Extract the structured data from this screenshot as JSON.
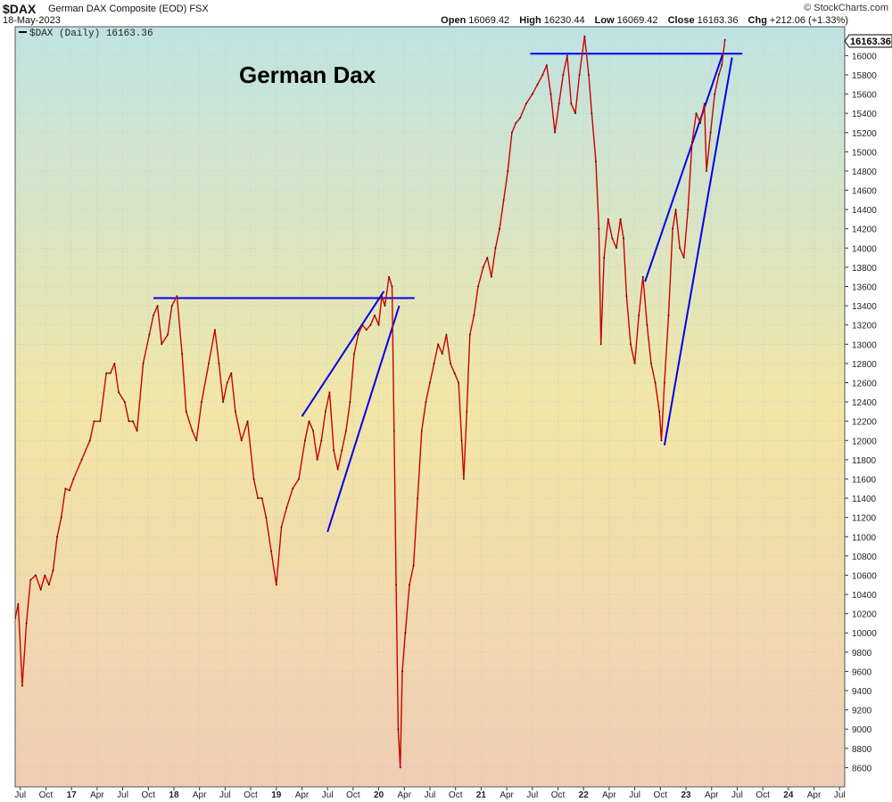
{
  "header": {
    "symbol": "$DAX",
    "name": "German DAX Composite (EOD) FSX",
    "date": "18-May-2023",
    "brand": "© StockCharts.com",
    "open_label": "Open",
    "open": "16069.42",
    "high_label": "High",
    "high": "16230.44",
    "low_label": "Low",
    "low": "16069.42",
    "close_label": "Close",
    "close": "16163.36",
    "chg_label": "Chg",
    "chg": "+212.06 (+1.33%)"
  },
  "chart_data": {
    "type": "line",
    "title": "German Dax",
    "legend": "$DAX (Daily) 16163.36",
    "legend_placement": "top-left",
    "last_value_label": "16163.36",
    "colors": {
      "series": "#cc0000",
      "trendline": "#0000ee",
      "bg_top": "#bfe3e3",
      "bg_mid": "#f2e6a6",
      "bg_bottom": "#f0cdb4"
    },
    "ylim": [
      8400,
      16300
    ],
    "x_range": [
      2016.45,
      2024.55
    ],
    "y_ticks": [
      8600,
      8800,
      9000,
      9200,
      9400,
      9600,
      9800,
      10000,
      10200,
      10400,
      10600,
      10800,
      11000,
      11200,
      11400,
      11600,
      11800,
      12000,
      12200,
      12400,
      12600,
      12800,
      13000,
      13200,
      13400,
      13600,
      13800,
      14000,
      14200,
      14400,
      14600,
      14800,
      15000,
      15200,
      15400,
      15600,
      15800,
      16000
    ],
    "x_ticks": [
      {
        "label": "Jul",
        "x": 2016.5
      },
      {
        "label": "Oct",
        "x": 2016.75
      },
      {
        "label": "17",
        "x": 2017.0
      },
      {
        "label": "Apr",
        "x": 2017.25
      },
      {
        "label": "Jul",
        "x": 2017.5
      },
      {
        "label": "Oct",
        "x": 2017.75
      },
      {
        "label": "18",
        "x": 2018.0
      },
      {
        "label": "Apr",
        "x": 2018.25
      },
      {
        "label": "Jul",
        "x": 2018.5
      },
      {
        "label": "Oct",
        "x": 2018.75
      },
      {
        "label": "19",
        "x": 2019.0
      },
      {
        "label": "Apr",
        "x": 2019.25
      },
      {
        "label": "Jul",
        "x": 2019.5
      },
      {
        "label": "Oct",
        "x": 2019.75
      },
      {
        "label": "20",
        "x": 2020.0
      },
      {
        "label": "Apr",
        "x": 2020.25
      },
      {
        "label": "Jul",
        "x": 2020.5
      },
      {
        "label": "Oct",
        "x": 2020.75
      },
      {
        "label": "21",
        "x": 2021.0
      },
      {
        "label": "Apr",
        "x": 2021.25
      },
      {
        "label": "Jul",
        "x": 2021.5
      },
      {
        "label": "Oct",
        "x": 2021.75
      },
      {
        "label": "22",
        "x": 2022.0
      },
      {
        "label": "Apr",
        "x": 2022.25
      },
      {
        "label": "Jul",
        "x": 2022.5
      },
      {
        "label": "Oct",
        "x": 2022.75
      },
      {
        "label": "23",
        "x": 2023.0
      },
      {
        "label": "Apr",
        "x": 2023.25
      },
      {
        "label": "Jul",
        "x": 2023.5
      },
      {
        "label": "Oct",
        "x": 2023.75
      },
      {
        "label": "24",
        "x": 2024.0
      },
      {
        "label": "Apr",
        "x": 2024.25
      },
      {
        "label": "Jul",
        "x": 2024.5
      }
    ],
    "series": [
      {
        "points": [
          [
            2016.45,
            10150
          ],
          [
            2016.48,
            10300
          ],
          [
            2016.52,
            9450
          ],
          [
            2016.56,
            10100
          ],
          [
            2016.6,
            10550
          ],
          [
            2016.65,
            10600
          ],
          [
            2016.7,
            10450
          ],
          [
            2016.74,
            10600
          ],
          [
            2016.78,
            10500
          ],
          [
            2016.82,
            10650
          ],
          [
            2016.86,
            11000
          ],
          [
            2016.9,
            11200
          ],
          [
            2016.94,
            11500
          ],
          [
            2016.98,
            11480
          ],
          [
            2017.02,
            11600
          ],
          [
            2017.1,
            11800
          ],
          [
            2017.18,
            12000
          ],
          [
            2017.22,
            12200
          ],
          [
            2017.28,
            12200
          ],
          [
            2017.34,
            12700
          ],
          [
            2017.38,
            12700
          ],
          [
            2017.42,
            12800
          ],
          [
            2017.46,
            12500
          ],
          [
            2017.52,
            12400
          ],
          [
            2017.56,
            12200
          ],
          [
            2017.6,
            12200
          ],
          [
            2017.64,
            12100
          ],
          [
            2017.7,
            12800
          ],
          [
            2017.76,
            13100
          ],
          [
            2017.8,
            13300
          ],
          [
            2017.84,
            13400
          ],
          [
            2017.88,
            13000
          ],
          [
            2017.94,
            13100
          ],
          [
            2017.98,
            13400
          ],
          [
            2018.03,
            13500
          ],
          [
            2018.08,
            12900
          ],
          [
            2018.12,
            12300
          ],
          [
            2018.18,
            12100
          ],
          [
            2018.22,
            12000
          ],
          [
            2018.27,
            12400
          ],
          [
            2018.34,
            12800
          ],
          [
            2018.4,
            13150
          ],
          [
            2018.44,
            12800
          ],
          [
            2018.48,
            12400
          ],
          [
            2018.52,
            12600
          ],
          [
            2018.56,
            12700
          ],
          [
            2018.6,
            12300
          ],
          [
            2018.66,
            12000
          ],
          [
            2018.72,
            12200
          ],
          [
            2018.78,
            11600
          ],
          [
            2018.82,
            11400
          ],
          [
            2018.86,
            11400
          ],
          [
            2018.9,
            11200
          ],
          [
            2018.95,
            10850
          ],
          [
            2019.0,
            10500
          ],
          [
            2019.05,
            11100
          ],
          [
            2019.1,
            11300
          ],
          [
            2019.16,
            11500
          ],
          [
            2019.22,
            11600
          ],
          [
            2019.28,
            12000
          ],
          [
            2019.32,
            12200
          ],
          [
            2019.36,
            12100
          ],
          [
            2019.4,
            11800
          ],
          [
            2019.44,
            12000
          ],
          [
            2019.48,
            12300
          ],
          [
            2019.52,
            12500
          ],
          [
            2019.56,
            11900
          ],
          [
            2019.6,
            11700
          ],
          [
            2019.64,
            11900
          ],
          [
            2019.68,
            12100
          ],
          [
            2019.72,
            12400
          ],
          [
            2019.76,
            12900
          ],
          [
            2019.8,
            13100
          ],
          [
            2019.84,
            13200
          ],
          [
            2019.88,
            13150
          ],
          [
            2019.92,
            13200
          ],
          [
            2019.96,
            13300
          ],
          [
            2020.0,
            13200
          ],
          [
            2020.03,
            13500
          ],
          [
            2020.06,
            13400
          ],
          [
            2020.1,
            13700
          ],
          [
            2020.13,
            13600
          ],
          [
            2020.15,
            12100
          ],
          [
            2020.17,
            10500
          ],
          [
            2020.19,
            9000
          ],
          [
            2020.21,
            8600
          ],
          [
            2020.23,
            9600
          ],
          [
            2020.26,
            10000
          ],
          [
            2020.3,
            10500
          ],
          [
            2020.34,
            10700
          ],
          [
            2020.38,
            11400
          ],
          [
            2020.42,
            12100
          ],
          [
            2020.46,
            12400
          ],
          [
            2020.5,
            12600
          ],
          [
            2020.54,
            12800
          ],
          [
            2020.58,
            13000
          ],
          [
            2020.62,
            12900
          ],
          [
            2020.66,
            13100
          ],
          [
            2020.7,
            12800
          ],
          [
            2020.74,
            12700
          ],
          [
            2020.78,
            12600
          ],
          [
            2020.81,
            12000
          ],
          [
            2020.83,
            11600
          ],
          [
            2020.86,
            12300
          ],
          [
            2020.89,
            13100
          ],
          [
            2020.93,
            13300
          ],
          [
            2020.97,
            13600
          ],
          [
            2021.02,
            13800
          ],
          [
            2021.06,
            13900
          ],
          [
            2021.1,
            13700
          ],
          [
            2021.14,
            14000
          ],
          [
            2021.18,
            14200
          ],
          [
            2021.22,
            14500
          ],
          [
            2021.26,
            14800
          ],
          [
            2021.3,
            15200
          ],
          [
            2021.34,
            15300
          ],
          [
            2021.38,
            15350
          ],
          [
            2021.44,
            15500
          ],
          [
            2021.5,
            15600
          ],
          [
            2021.55,
            15700
          ],
          [
            2021.6,
            15800
          ],
          [
            2021.64,
            15900
          ],
          [
            2021.68,
            15600
          ],
          [
            2021.72,
            15200
          ],
          [
            2021.76,
            15500
          ],
          [
            2021.8,
            15800
          ],
          [
            2021.84,
            16000
          ],
          [
            2021.88,
            15500
          ],
          [
            2021.92,
            15400
          ],
          [
            2021.96,
            15800
          ],
          [
            2022.01,
            16200
          ],
          [
            2022.05,
            15800
          ],
          [
            2022.08,
            15400
          ],
          [
            2022.12,
            14900
          ],
          [
            2022.15,
            14200
          ],
          [
            2022.17,
            13000
          ],
          [
            2022.2,
            13900
          ],
          [
            2022.24,
            14300
          ],
          [
            2022.28,
            14100
          ],
          [
            2022.32,
            14000
          ],
          [
            2022.36,
            14300
          ],
          [
            2022.39,
            14100
          ],
          [
            2022.42,
            13500
          ],
          [
            2022.46,
            13000
          ],
          [
            2022.5,
            12800
          ],
          [
            2022.54,
            13300
          ],
          [
            2022.58,
            13700
          ],
          [
            2022.62,
            13200
          ],
          [
            2022.66,
            12800
          ],
          [
            2022.7,
            12600
          ],
          [
            2022.74,
            12300
          ],
          [
            2022.76,
            12000
          ],
          [
            2022.79,
            12600
          ],
          [
            2022.83,
            13300
          ],
          [
            2022.87,
            14200
          ],
          [
            2022.9,
            14400
          ],
          [
            2022.94,
            14000
          ],
          [
            2022.98,
            13900
          ],
          [
            2023.02,
            14400
          ],
          [
            2023.06,
            15100
          ],
          [
            2023.1,
            15400
          ],
          [
            2023.14,
            15300
          ],
          [
            2023.18,
            15500
          ],
          [
            2023.2,
            14800
          ],
          [
            2023.24,
            15200
          ],
          [
            2023.28,
            15600
          ],
          [
            2023.32,
            15800
          ],
          [
            2023.35,
            15900
          ],
          [
            2023.38,
            16163.36
          ]
        ]
      }
    ],
    "trendlines": [
      {
        "from": [
          2017.8,
          13480
        ],
        "to": [
          2020.35,
          13480
        ]
      },
      {
        "from": [
          2019.25,
          12250
        ],
        "to": [
          2020.05,
          13550
        ]
      },
      {
        "from": [
          2019.5,
          11050
        ],
        "to": [
          2020.2,
          13400
        ]
      },
      {
        "from": [
          2021.48,
          16020
        ],
        "to": [
          2023.55,
          16020
        ]
      },
      {
        "from": [
          2022.6,
          13650
        ],
        "to": [
          2023.36,
          16020
        ]
      },
      {
        "from": [
          2022.79,
          11950
        ],
        "to": [
          2023.45,
          15980
        ]
      }
    ]
  }
}
